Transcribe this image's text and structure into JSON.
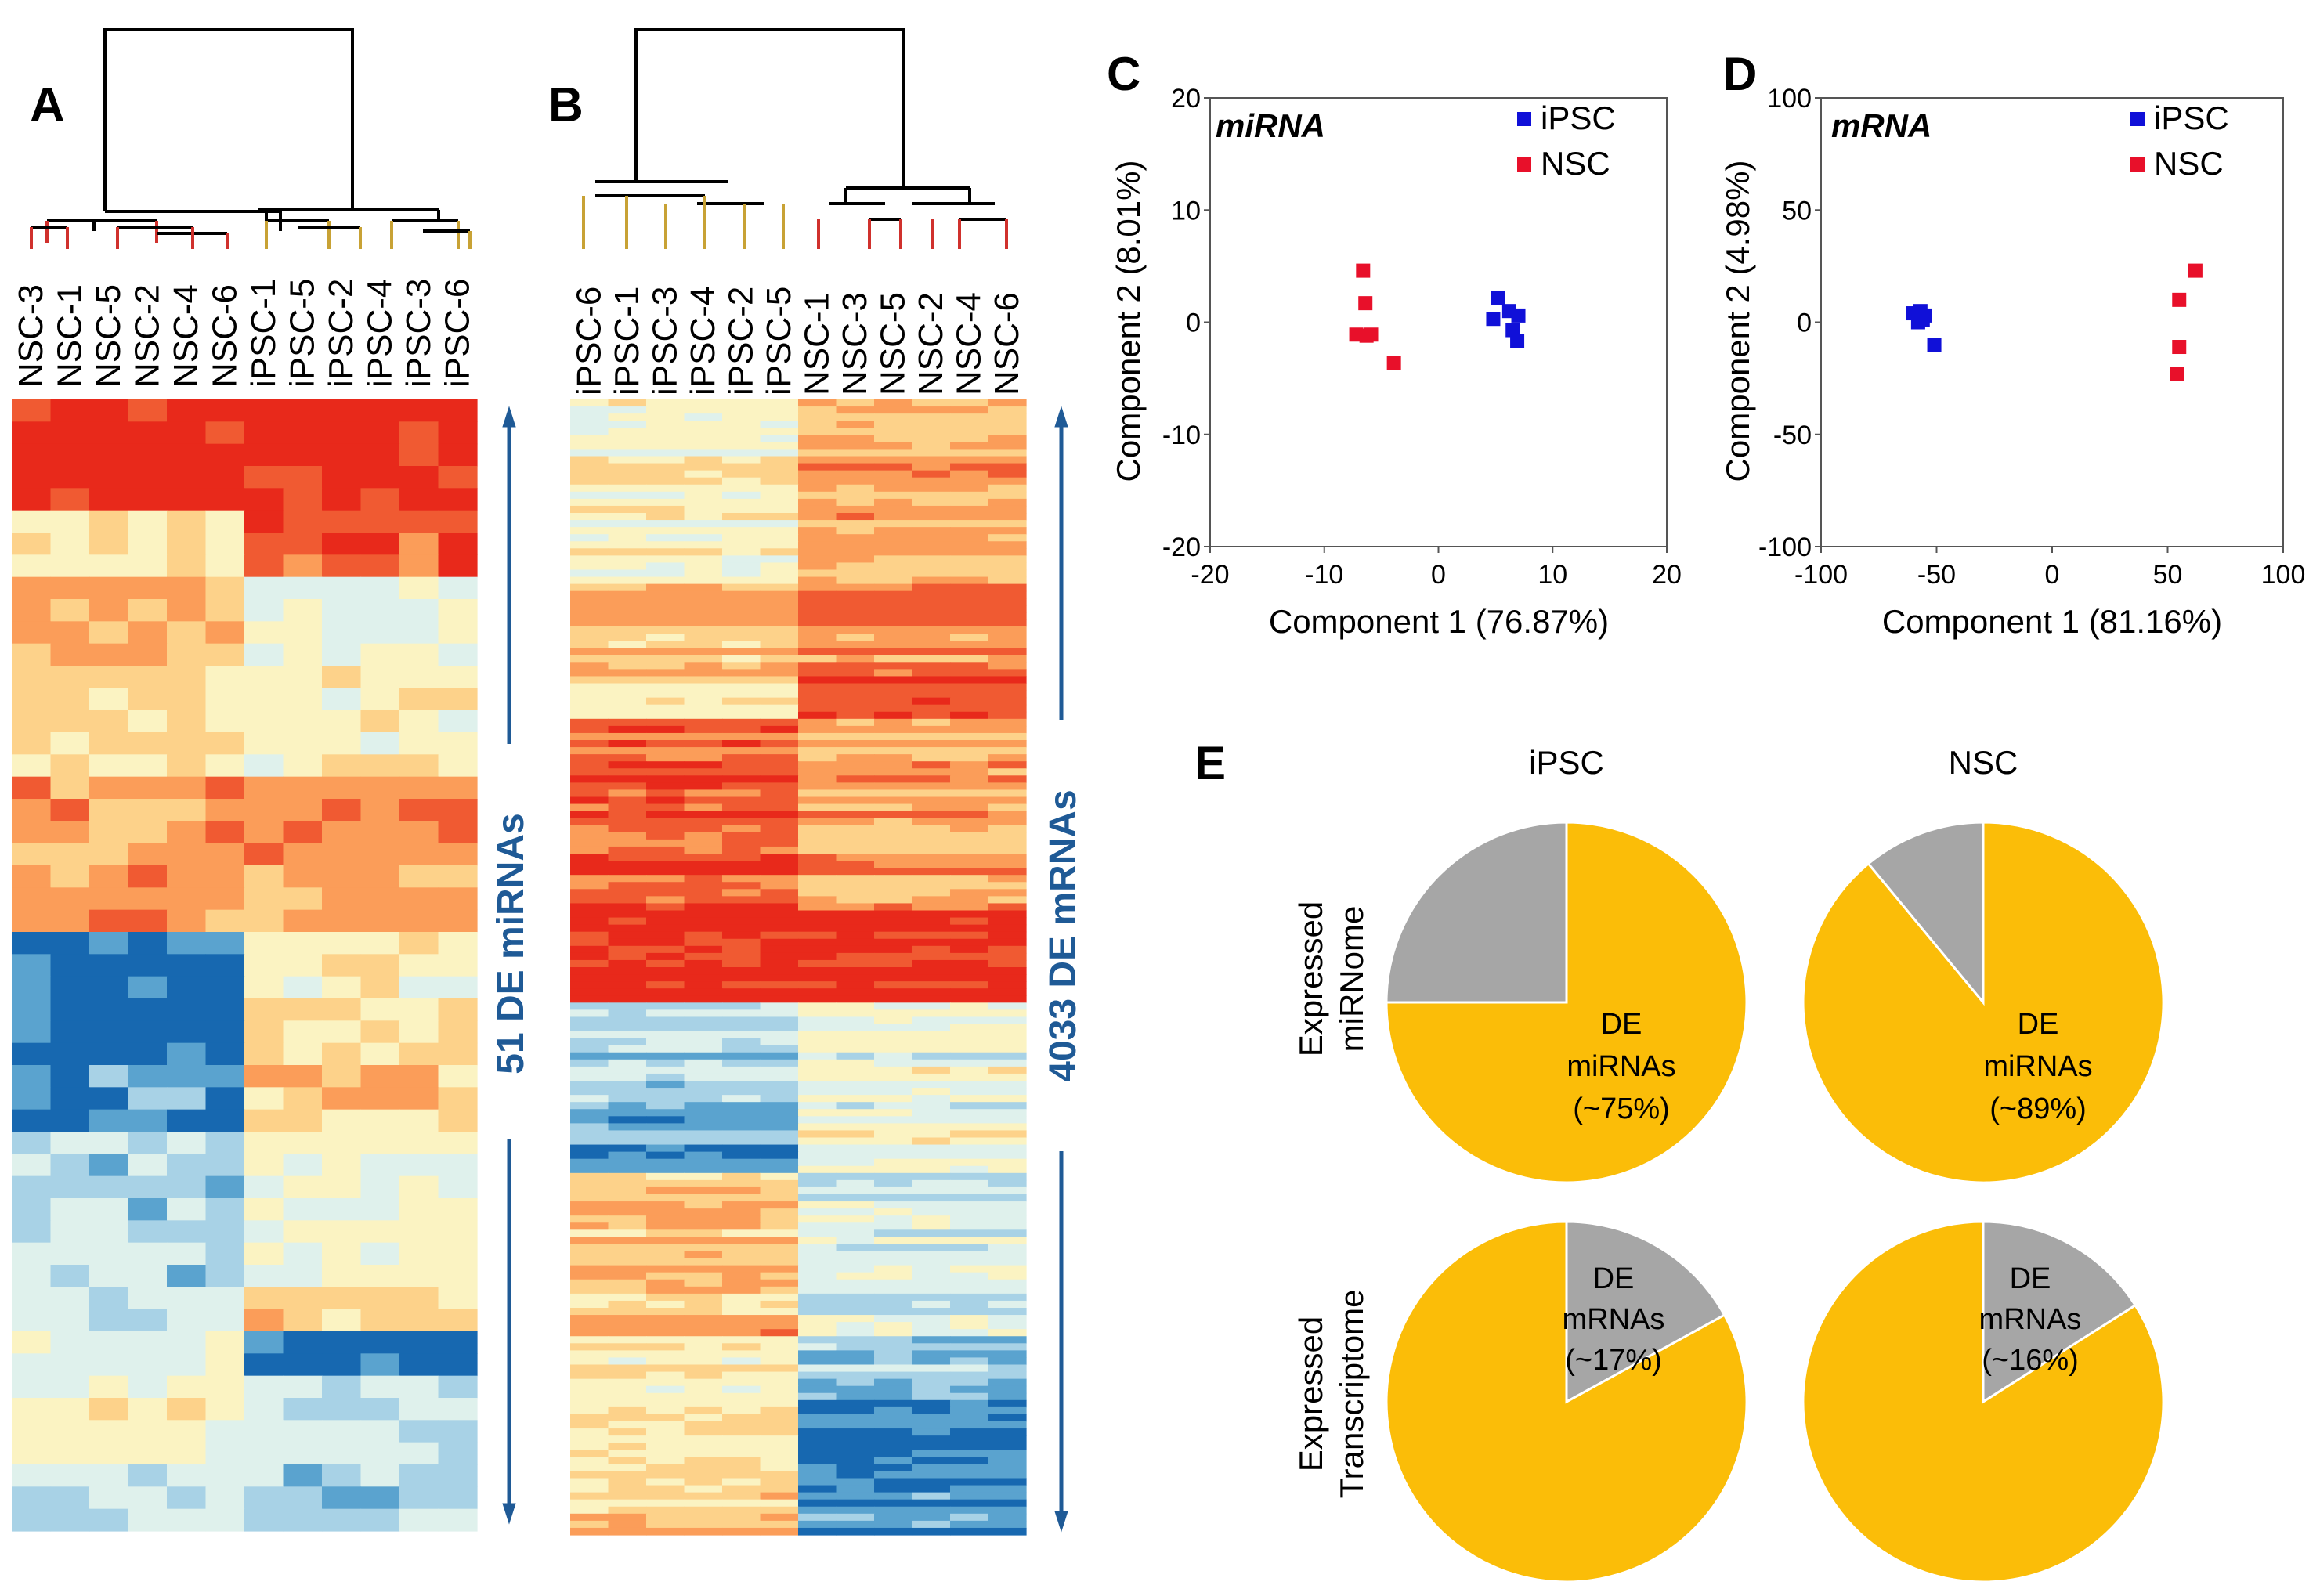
{
  "panels": {
    "A": "A",
    "B": "B",
    "C": "C",
    "D": "D",
    "E": "E"
  },
  "colors": {
    "ipsc": "#1010d8",
    "nsc": "#e8102a",
    "dendro_red": "#d0312d",
    "dendro_gold": "#c8a235",
    "pie_major": "#fbbd08",
    "pie_minor": "#a6a6a6",
    "arrow": "#1f5a96",
    "heat": [
      "#1768b0",
      "#5aa3cf",
      "#a8d2e6",
      "#dff1ec",
      "#fbf3c2",
      "#fdd28a",
      "#fb9d59",
      "#f05a32",
      "#e8291b"
    ]
  },
  "chart_data": [
    {
      "panel": "A",
      "type": "heatmap",
      "columns": [
        "NSC-3",
        "NSC-1",
        "NSC-5",
        "NSC-2",
        "NSC-4",
        "NSC-6",
        "iPSC-1",
        "iPSC-5",
        "iPSC-2",
        "iPSC-4",
        "iPSC-3",
        "iPSC-6"
      ],
      "row_label": "51 DE miRNAs",
      "n_rows": 51,
      "value_range": [
        -2,
        2
      ]
    },
    {
      "panel": "B",
      "type": "heatmap",
      "columns": [
        "iPSC-6",
        "iPSC-1",
        "iPSC-3",
        "iPSC-4",
        "iPSC-2",
        "iPSC-5",
        "NSC-1",
        "NSC-3",
        "NSC-5",
        "NSC-2",
        "NSC-4",
        "NSC-6"
      ],
      "row_label": "4033 DE mRNAs",
      "n_rows": 4033,
      "value_range": [
        -2,
        2
      ]
    },
    {
      "panel": "C",
      "type": "scatter",
      "title": "miRNA",
      "xlabel": "Component 1 (76.87%)",
      "ylabel": "Component 2 (8.01%)",
      "xlim": [
        -20,
        20
      ],
      "ylim": [
        -20,
        20
      ],
      "xticks": [
        "-20",
        "-10",
        "0",
        "10",
        "20"
      ],
      "yticks": [
        "20",
        "10",
        "0",
        "-10",
        "-20"
      ],
      "series": [
        {
          "name": "iPSC",
          "points": [
            [
              5.2,
              2.2
            ],
            [
              4.8,
              0.3
            ],
            [
              6.2,
              1.0
            ],
            [
              7.0,
              0.6
            ],
            [
              6.5,
              -0.7
            ],
            [
              6.9,
              -1.7
            ]
          ]
        },
        {
          "name": "NSC",
          "points": [
            [
              -6.6,
              4.6
            ],
            [
              -6.4,
              1.7
            ],
            [
              -7.2,
              -1.1
            ],
            [
              -6.3,
              -1.2
            ],
            [
              -5.9,
              -1.1
            ],
            [
              -3.9,
              -3.6
            ]
          ]
        }
      ]
    },
    {
      "panel": "D",
      "type": "scatter",
      "title": "mRNA",
      "xlabel": "Component 1 (81.16%)",
      "ylabel": "Component 2 (4.98%)",
      "xlim": [
        -100,
        100
      ],
      "ylim": [
        -100,
        100
      ],
      "xticks": [
        "-100",
        "-50",
        "0",
        "50",
        "100"
      ],
      "yticks": [
        "100",
        "50",
        "0",
        "-50",
        "-100"
      ],
      "series": [
        {
          "name": "iPSC",
          "points": [
            [
              -60,
              4
            ],
            [
              -57,
              5
            ],
            [
              -55,
              3
            ],
            [
              -58,
              0
            ],
            [
              -56,
              1
            ],
            [
              -51,
              -10
            ]
          ]
        },
        {
          "name": "NSC",
          "points": [
            [
              62,
              23
            ],
            [
              55,
              10
            ],
            [
              55,
              -11
            ],
            [
              54,
              -23
            ]
          ]
        }
      ]
    },
    {
      "panel": "E",
      "type": "pie",
      "columns": [
        "iPSC",
        "NSC"
      ],
      "rows": [
        "Expressed miRNome",
        "Expressed Transcriptome"
      ],
      "pies": [
        {
          "row": "Expressed miRNome",
          "col": "iPSC",
          "de_fraction": 0.75,
          "label": [
            "DE",
            "miRNAs",
            "(~75%)"
          ]
        },
        {
          "row": "Expressed miRNome",
          "col": "NSC",
          "de_fraction": 0.89,
          "label": [
            "DE",
            "miRNAs",
            "(~89%)"
          ]
        },
        {
          "row": "Expressed Transcriptome",
          "col": "iPSC",
          "de_fraction": 0.17,
          "label": [
            "DE",
            "mRNAs",
            "(~17%)"
          ]
        },
        {
          "row": "Expressed Transcriptome",
          "col": "NSC",
          "de_fraction": 0.16,
          "label": [
            "DE",
            "mRNAs",
            "(~16%)"
          ]
        }
      ]
    }
  ]
}
